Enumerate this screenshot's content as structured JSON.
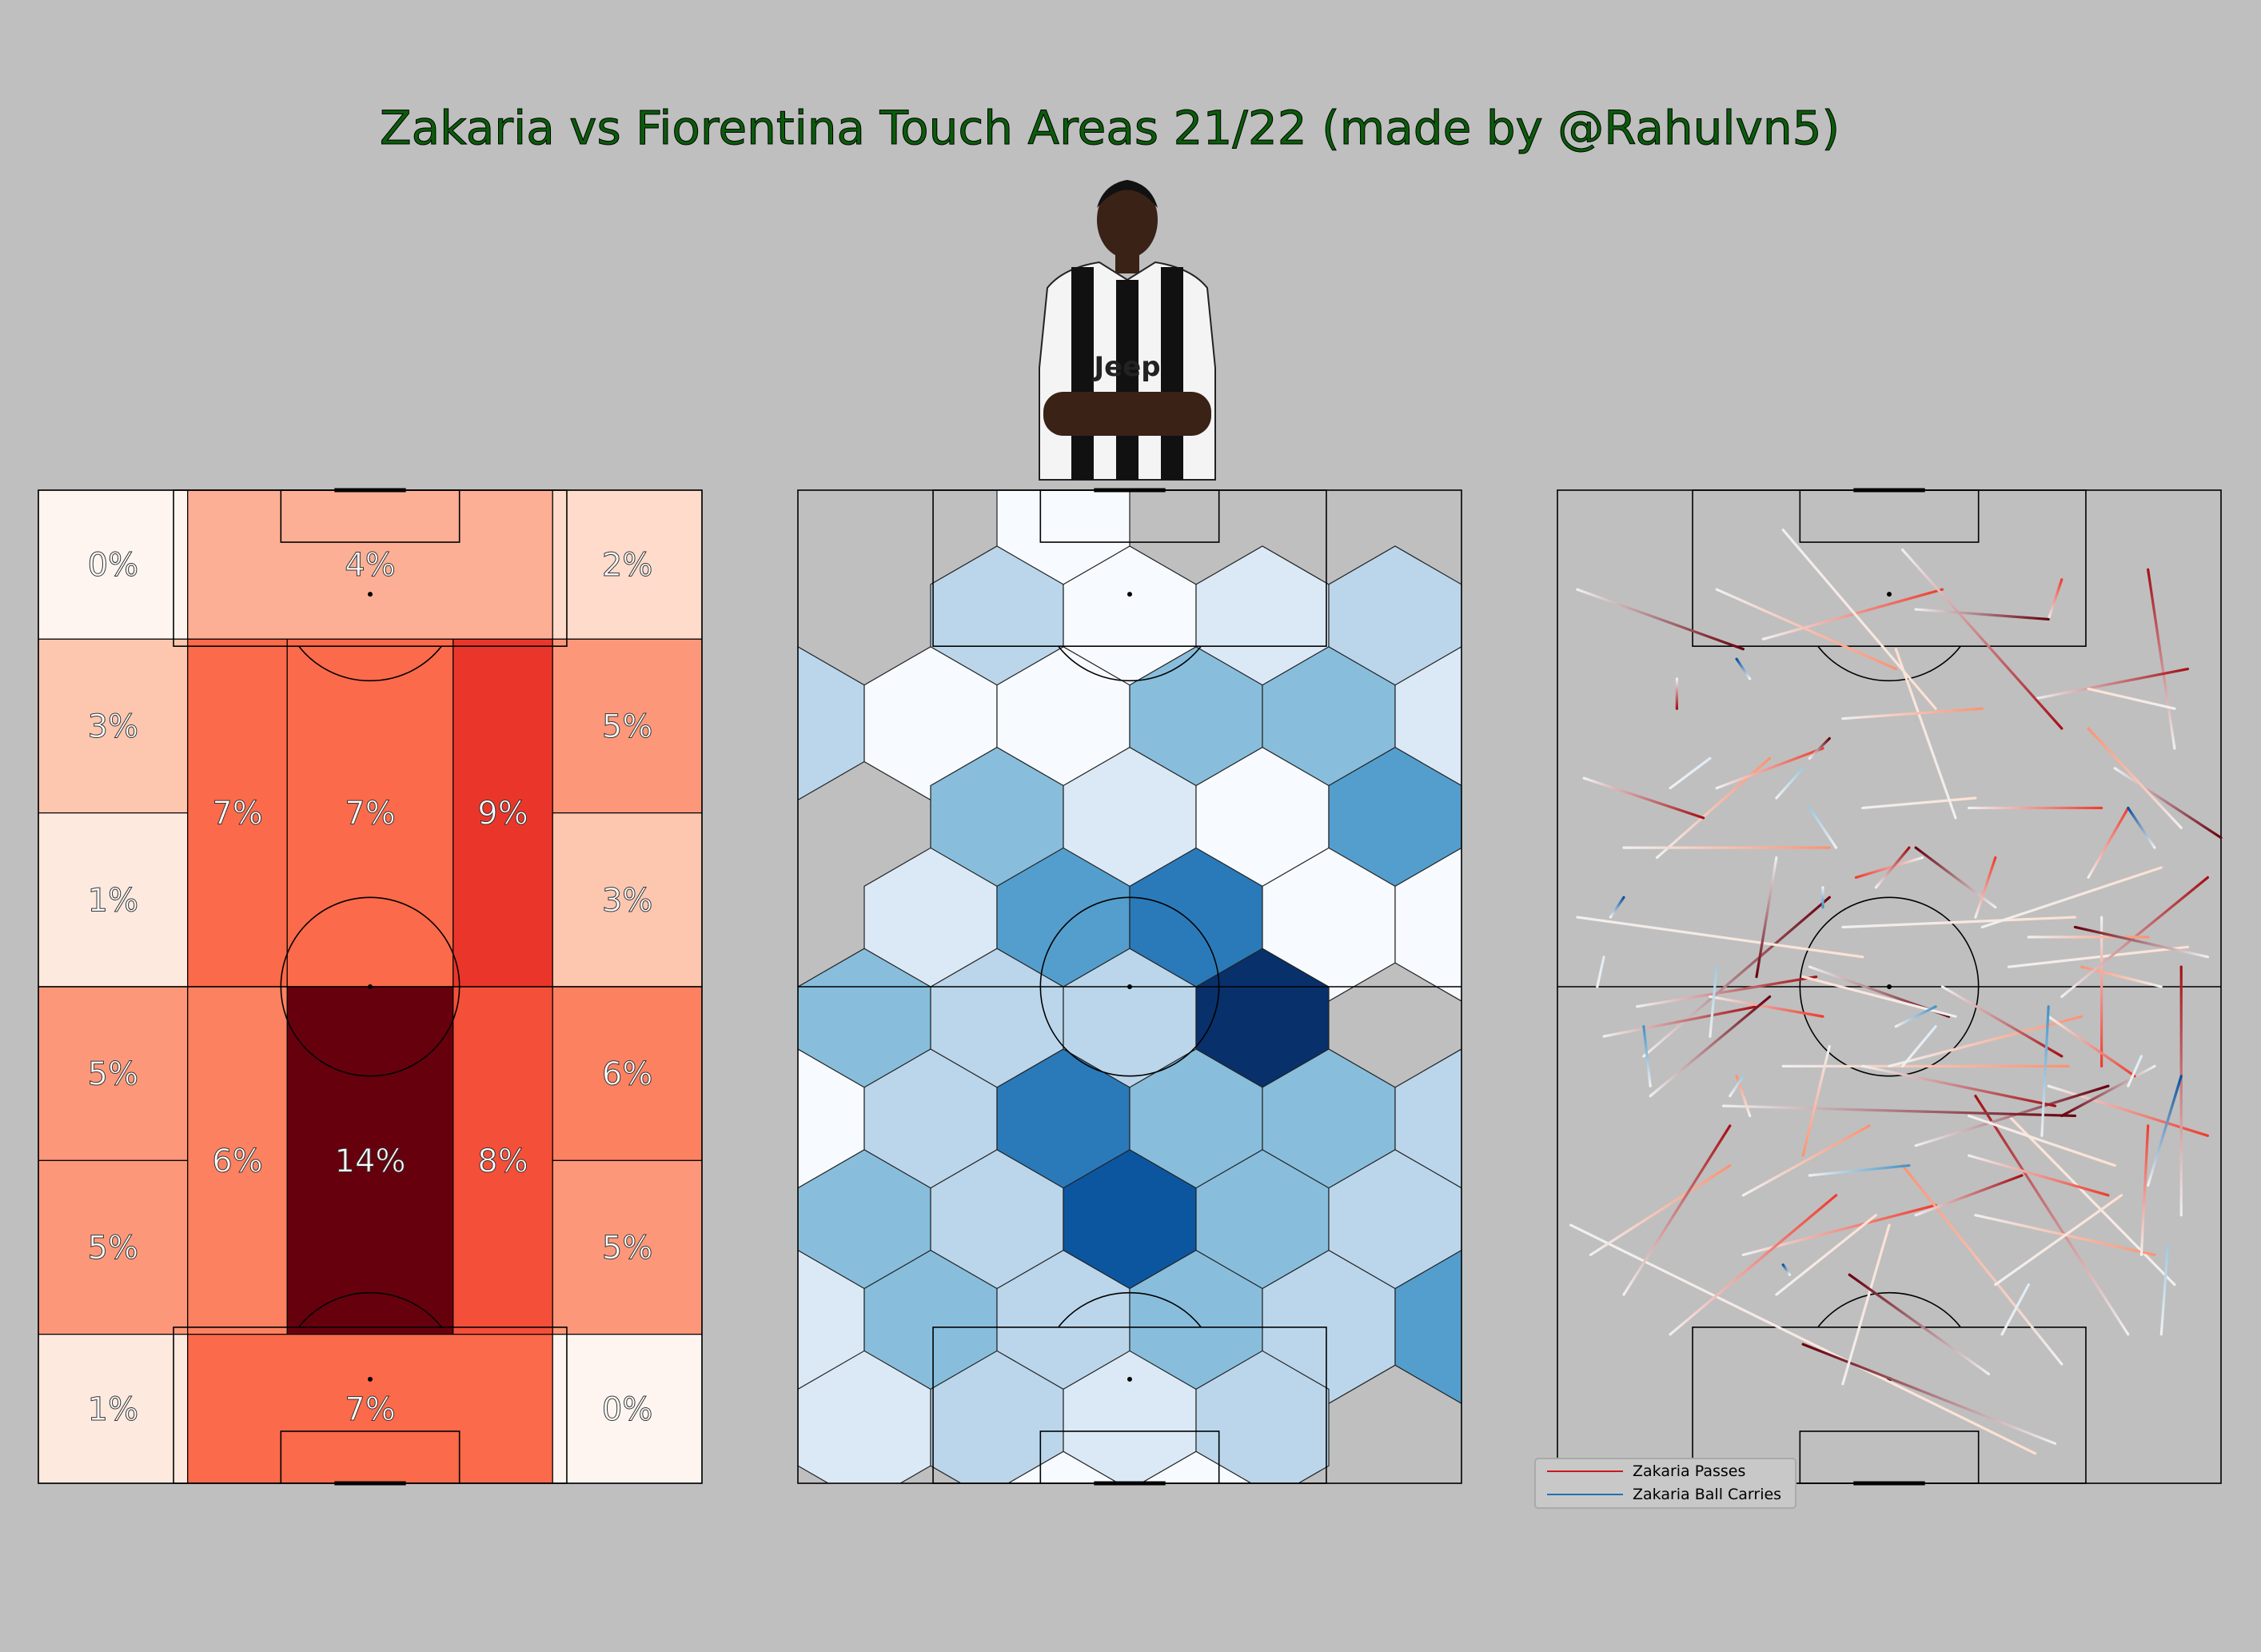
{
  "title": "Zakaria vs Fiorentina Touch Areas 21/22 (made by @Rahulvn5)",
  "colors": {
    "background": "#bfbfbf",
    "title": "#0a5c0a",
    "line": "#000000",
    "pass_light": "#fcbba1",
    "pass_dark": "#67000d",
    "carry_light": "#c6dbef",
    "carry_dark": "#08306b"
  },
  "player_photo": {
    "icon": "player-photo",
    "description_visible": "Juventus kit, Jeep sponsor"
  },
  "chart_data": [
    {
      "type": "heatmap",
      "name": "positional-zone-touch-percentages",
      "colormap": "Reds",
      "zones": [
        {
          "zone": "top-left-corner",
          "label": "0%",
          "value": 0
        },
        {
          "zone": "top-center-box",
          "label": "4%",
          "value": 4
        },
        {
          "zone": "top-right-corner",
          "label": "2%",
          "value": 2
        },
        {
          "zone": "upper-left-wing-high",
          "label": "3%",
          "value": 3
        },
        {
          "zone": "upper-left-wing-low",
          "label": "1%",
          "value": 1
        },
        {
          "zone": "upper-left-halfspace",
          "label": "7%",
          "value": 7
        },
        {
          "zone": "upper-center",
          "label": "7%",
          "value": 7
        },
        {
          "zone": "upper-right-halfspace",
          "label": "9%",
          "value": 9
        },
        {
          "zone": "upper-right-wing-high",
          "label": "5%",
          "value": 5
        },
        {
          "zone": "upper-right-wing-low",
          "label": "3%",
          "value": 3
        },
        {
          "zone": "lower-left-wing-high",
          "label": "5%",
          "value": 5
        },
        {
          "zone": "lower-left-wing-low",
          "label": "5%",
          "value": 5
        },
        {
          "zone": "lower-left-halfspace",
          "label": "6%",
          "value": 6
        },
        {
          "zone": "lower-center",
          "label": "14%",
          "value": 14
        },
        {
          "zone": "lower-right-halfspace",
          "label": "8%",
          "value": 8
        },
        {
          "zone": "lower-right-wing-high",
          "label": "6%",
          "value": 6
        },
        {
          "zone": "lower-right-wing-low",
          "label": "5%",
          "value": 5
        },
        {
          "zone": "bottom-left-corner",
          "label": "1%",
          "value": 1
        },
        {
          "zone": "bottom-center-box",
          "label": "7%",
          "value": 7
        },
        {
          "zone": "bottom-right-corner",
          "label": "0%",
          "value": 0
        }
      ]
    },
    {
      "type": "heatmap",
      "name": "hexbin-touch-density",
      "colormap": "Blues",
      "note": "hexagon density levels 0 (lightest) to 7 (darkest)",
      "rows": [
        {
          "row": 0,
          "offset": true,
          "levels": [
            null,
            null,
            0,
            null,
            null
          ]
        },
        {
          "row": 1,
          "offset": false,
          "levels": [
            null,
            2,
            0,
            1,
            2
          ]
        },
        {
          "row": 2,
          "offset": true,
          "levels": [
            2,
            0,
            0,
            3,
            3,
            1
          ]
        },
        {
          "row": 3,
          "offset": false,
          "levels": [
            null,
            3,
            1,
            0,
            4
          ]
        },
        {
          "row": 4,
          "offset": true,
          "levels": [
            null,
            1,
            4,
            5,
            0,
            0
          ]
        },
        {
          "row": 5,
          "offset": false,
          "levels": [
            3,
            2,
            2,
            7,
            null
          ]
        },
        {
          "row": 6,
          "offset": true,
          "levels": [
            0,
            2,
            5,
            3,
            3,
            2
          ]
        },
        {
          "row": 7,
          "offset": false,
          "levels": [
            3,
            2,
            6,
            3,
            2
          ]
        },
        {
          "row": 8,
          "offset": true,
          "levels": [
            1,
            3,
            2,
            3,
            2,
            4
          ]
        },
        {
          "row": 9,
          "offset": false,
          "levels": [
            1,
            2,
            1,
            2,
            null
          ]
        },
        {
          "row": 10,
          "offset": true,
          "levels": [
            null,
            null,
            0,
            0,
            null,
            null
          ]
        }
      ]
    },
    {
      "type": "line",
      "name": "passes-and-carries",
      "legend": {
        "position": "lower-left",
        "entries": [
          "Zakaria Passes",
          "Zakaria Ball Carries"
        ]
      },
      "series": [
        {
          "name": "Zakaria Passes",
          "colormap": "Reds",
          "segments": [
            [
              2,
              74,
              72,
              97
            ],
            [
              28,
              77,
              57,
              72
            ],
            [
              75,
              96,
              37,
              86
            ],
            [
              5,
              77,
              26,
              68
            ],
            [
              10,
              81,
              26,
              64
            ],
            [
              43,
              90,
              50,
              74
            ],
            [
              17,
              85,
              42,
              71
            ],
            [
              65,
              89,
              44,
              79
            ],
            [
              76,
              88,
              52,
              68
            ],
            [
              86,
              85,
              63,
              61
            ],
            [
              93,
              80,
              68,
              63
            ],
            [
              74,
              60,
              98,
              65
            ],
            [
              54,
              66,
              83,
              60
            ],
            [
              63,
              73,
              90,
              77
            ],
            [
              94,
              73,
              94,
              48
            ],
            [
              62,
              63,
              84,
              68
            ],
            [
              88,
              77,
              89,
              64
            ],
            [
              25,
              62,
              78,
              63
            ],
            [
              34,
              58,
              77,
              58
            ],
            [
              12,
              52,
              39,
              49
            ],
            [
              66,
              80,
              85,
              71
            ],
            [
              62,
              67,
              83,
              71
            ],
            [
              13,
              57,
              41,
              41
            ],
            [
              50,
              58,
              79,
              53
            ],
            [
              46,
              58,
              75,
              62
            ],
            [
              68,
              48,
              95,
              46
            ],
            [
              82,
              43,
              82,
              58
            ],
            [
              90,
              58,
              76,
              63
            ],
            [
              29,
              63,
              27,
              59
            ],
            [
              7,
              55,
              30,
              52
            ],
            [
              3,
              43,
              46,
              47
            ],
            [
              23,
              51,
              40,
              53
            ],
            [
              38,
              48,
              59,
              53
            ],
            [
              91,
              50,
              79,
              48
            ],
            [
              76,
              51,
              98,
              39
            ],
            [
              43,
              44,
              78,
              43
            ],
            [
              55,
              37,
              45,
              39
            ],
            [
              33,
              37,
              30,
              49
            ],
            [
              15,
              37,
              32,
              27
            ],
            [
              4,
              29,
              22,
              33
            ],
            [
              46,
              32,
              63,
              31
            ],
            [
              62,
              32,
              82,
              32
            ],
            [
              84,
              28,
              100,
              35
            ],
            [
              94,
              34,
              80,
              24
            ],
            [
              93,
              26,
              89,
              8
            ],
            [
              60,
              33,
              51,
              16
            ],
            [
              24,
              30,
              40,
              26
            ],
            [
              38,
              27,
              41,
              25
            ],
            [
              43,
              23,
              64,
              22
            ],
            [
              72,
              21,
              95,
              18
            ],
            [
              93,
              22,
              80,
              20
            ],
            [
              31,
              15,
              58,
              10
            ],
            [
              3,
              10,
              28,
              16
            ],
            [
              24,
              10,
              51,
              18
            ],
            [
              52,
              6,
              76,
              24
            ],
            [
              34,
              4,
              57,
              22
            ],
            [
              74,
              13,
              76,
              9
            ],
            [
              54,
              12,
              74,
              13
            ],
            [
              10,
              36,
              41,
              36
            ],
            [
              48,
              40,
              53,
              36
            ],
            [
              64,
              44,
              91,
              38
            ],
            [
              80,
              39,
              86,
              32
            ],
            [
              66,
              42,
              54,
              36
            ],
            [
              71,
              45,
              89,
              45
            ],
            [
              18,
              19,
              18,
              22
            ],
            [
              60,
              53,
              37,
              49
            ],
            [
              74,
              53,
              87,
              59
            ],
            [
              98,
              47,
              78,
              44
            ],
            [
              41,
              56,
              37,
              67
            ],
            [
              54,
              73,
              70,
              69
            ],
            [
              33,
              81,
              48,
              73
            ],
            [
              63,
              43,
              66,
              37
            ],
            [
              14,
              61,
              32,
              51
            ],
            [
              28,
              71,
              47,
              64
            ],
            [
              58,
              50,
              76,
              57
            ]
          ]
        },
        {
          "name": "Zakaria Ball Carries",
          "colormap": "Blues",
          "segments": [
            [
              26,
              61,
              28,
              59
            ],
            [
              67,
              85,
              71,
              80
            ],
            [
              35,
              79,
              34,
              78
            ],
            [
              38,
              69,
              53,
              68
            ],
            [
              91,
              85,
              92,
              76
            ],
            [
              52,
              58,
              57,
              54
            ],
            [
              89,
              70,
              94,
              59
            ],
            [
              14,
              60,
              13,
              54
            ],
            [
              23,
              55,
              24,
              48
            ],
            [
              6,
              50,
              7,
              47
            ],
            [
              8,
              43,
              10,
              41
            ],
            [
              40,
              40,
              40,
              42
            ],
            [
              42,
              36,
              38,
              32
            ],
            [
              86,
              60,
              88,
              57
            ],
            [
              90,
              36,
              86,
              32
            ],
            [
              73,
              65,
              74,
              52
            ],
            [
              33,
              31,
              37,
              28
            ],
            [
              17,
              30,
              23,
              27
            ],
            [
              29,
              19,
              27,
              17
            ],
            [
              51,
              54,
              57,
              52
            ]
          ]
        }
      ]
    }
  ]
}
